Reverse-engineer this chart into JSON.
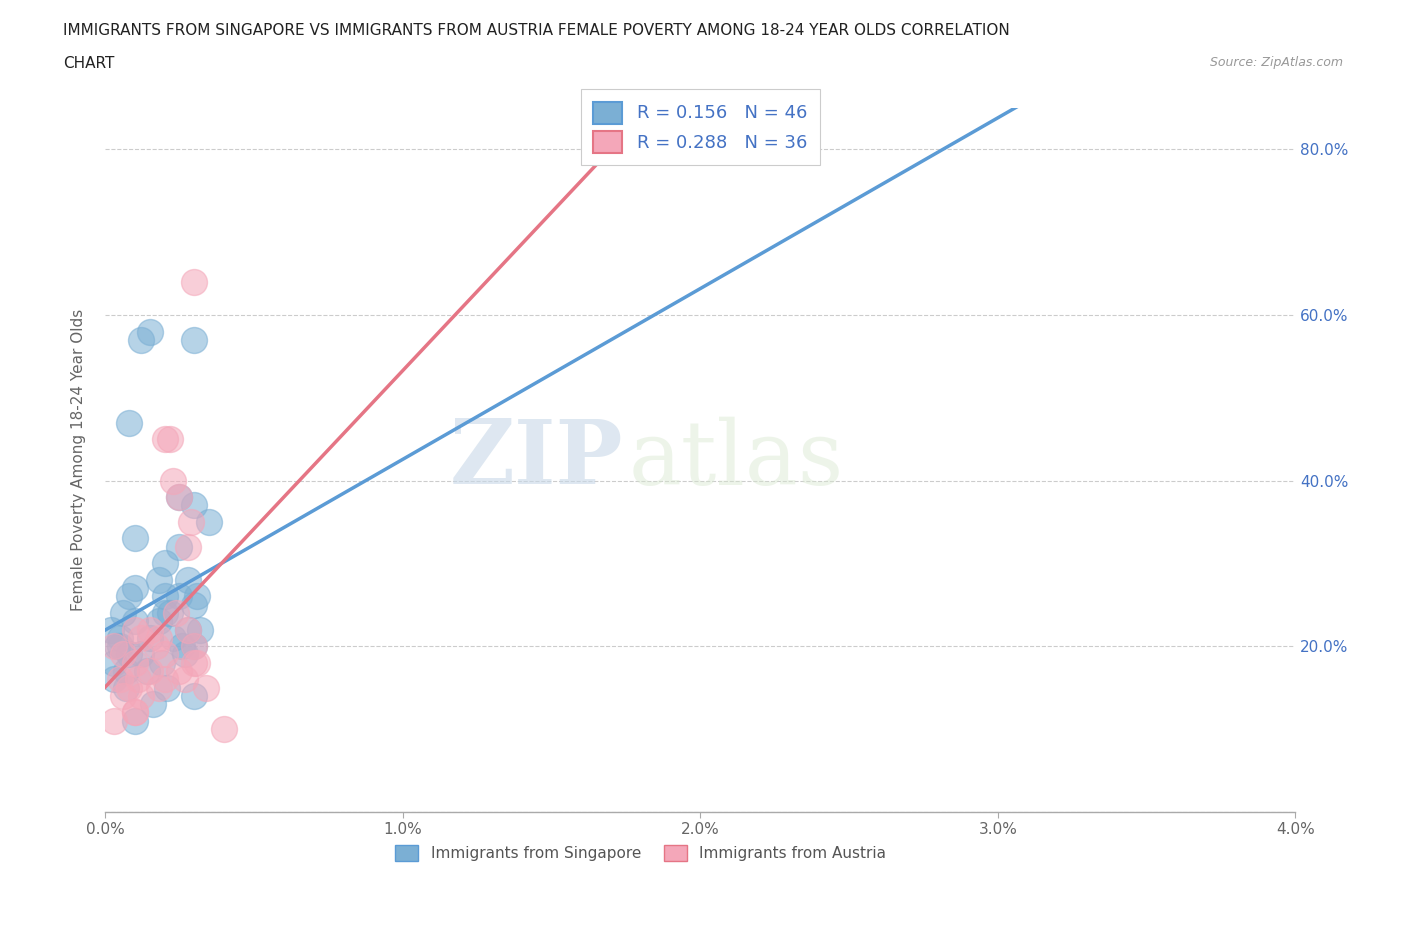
{
  "title_line1": "IMMIGRANTS FROM SINGAPORE VS IMMIGRANTS FROM AUSTRIA FEMALE POVERTY AMONG 18-24 YEAR OLDS CORRELATION",
  "title_line2": "CHART",
  "source": "Source: ZipAtlas.com",
  "ylabel": "Female Poverty Among 18-24 Year Olds",
  "xlim": [
    0.0,
    0.04
  ],
  "ylim": [
    0.0,
    0.85
  ],
  "xticks": [
    0.0,
    0.01,
    0.02,
    0.03,
    0.04
  ],
  "xticklabels": [
    "0.0%",
    "1.0%",
    "2.0%",
    "3.0%",
    "4.0%"
  ],
  "yticks": [
    0.0,
    0.2,
    0.4,
    0.6,
    0.8
  ],
  "yticklabels": [
    "",
    "20.0%",
    "40.0%",
    "60.0%",
    "80.0%"
  ],
  "singapore_color": "#7bafd4",
  "austria_color": "#f4a7b9",
  "singapore_R": 0.156,
  "singapore_N": 46,
  "austria_R": 0.288,
  "austria_N": 36,
  "trend_singapore_color": "#5b9bd5",
  "trend_austria_color": "#e57585",
  "background_color": "#ffffff",
  "watermark_zip": "ZIP",
  "watermark_atlas": "atlas",
  "singapore_x": [
    0.0002,
    0.0004,
    0.0006,
    0.0008,
    0.001,
    0.001,
    0.0008,
    0.0005,
    0.0003,
    0.0007,
    0.0012,
    0.0015,
    0.0018,
    0.002,
    0.002,
    0.0022,
    0.0025,
    0.0028,
    0.003,
    0.0032,
    0.0035,
    0.003,
    0.0028,
    0.0025,
    0.002,
    0.0018,
    0.0015,
    0.0012,
    0.001,
    0.0008,
    0.0005,
    0.0003,
    0.0007,
    0.0014,
    0.0019,
    0.0023,
    0.0027,
    0.0031,
    0.003,
    0.0026,
    0.0021,
    0.0016,
    0.001,
    0.0025,
    0.003,
    0.003
  ],
  "singapore_y": [
    0.22,
    0.2,
    0.24,
    0.26,
    0.23,
    0.27,
    0.19,
    0.21,
    0.18,
    0.17,
    0.57,
    0.58,
    0.28,
    0.3,
    0.26,
    0.24,
    0.32,
    0.28,
    0.25,
    0.22,
    0.35,
    0.2,
    0.22,
    0.26,
    0.24,
    0.23,
    0.21,
    0.19,
    0.33,
    0.47,
    0.2,
    0.16,
    0.15,
    0.17,
    0.18,
    0.21,
    0.19,
    0.26,
    0.14,
    0.2,
    0.15,
    0.13,
    0.11,
    0.38,
    0.37,
    0.57
  ],
  "austria_x": [
    0.0003,
    0.0006,
    0.001,
    0.0012,
    0.0015,
    0.0018,
    0.002,
    0.0022,
    0.0025,
    0.0028,
    0.003,
    0.003,
    0.0028,
    0.0025,
    0.002,
    0.0018,
    0.0015,
    0.0012,
    0.001,
    0.0008,
    0.0005,
    0.0003,
    0.0024,
    0.0027,
    0.0031,
    0.0034,
    0.004,
    0.0029,
    0.0023,
    0.0017,
    0.0011,
    0.0006,
    0.002,
    0.003,
    0.001,
    0.001
  ],
  "austria_y": [
    0.2,
    0.19,
    0.22,
    0.21,
    0.17,
    0.15,
    0.16,
    0.45,
    0.38,
    0.32,
    0.2,
    0.18,
    0.22,
    0.17,
    0.19,
    0.21,
    0.22,
    0.14,
    0.12,
    0.15,
    0.16,
    0.11,
    0.24,
    0.16,
    0.18,
    0.15,
    0.1,
    0.35,
    0.4,
    0.2,
    0.16,
    0.14,
    0.45,
    0.64,
    0.12,
    0.18
  ]
}
